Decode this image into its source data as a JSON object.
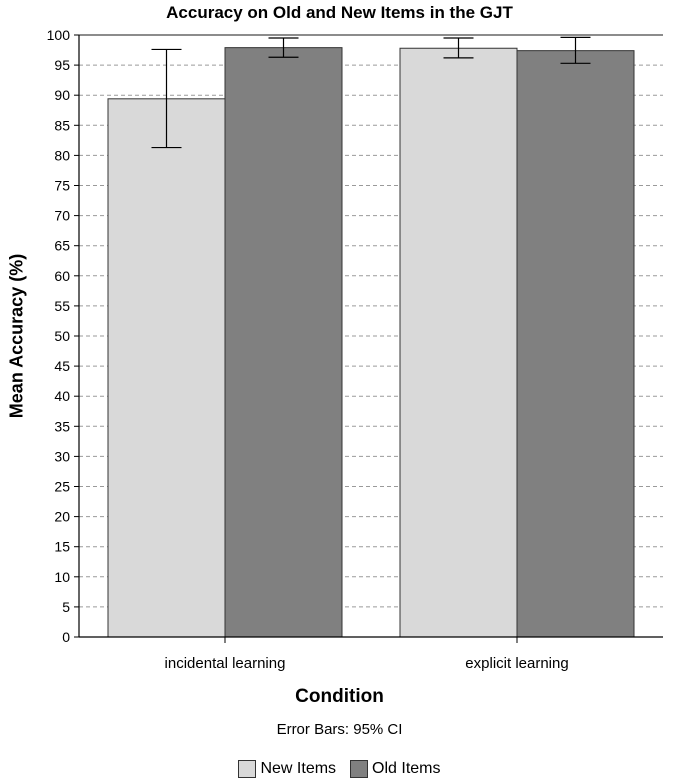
{
  "chart_data": {
    "type": "bar",
    "title": "Accuracy on Old and New Items in the GJT",
    "xlabel": "Condition",
    "ylabel": "Mean Accuracy (%)",
    "ylim": [
      0,
      100
    ],
    "yticks": [
      0,
      5,
      10,
      15,
      20,
      25,
      30,
      35,
      40,
      45,
      50,
      55,
      60,
      65,
      70,
      75,
      80,
      85,
      90,
      95,
      100
    ],
    "grid": true,
    "categories": [
      "incidental learning",
      "explicit learning"
    ],
    "series": [
      {
        "name": "New Items",
        "color": "#d9d9d9",
        "values": [
          89.4,
          97.8
        ],
        "ci_low": [
          81.3,
          96.2
        ],
        "ci_high": [
          97.6,
          99.5
        ]
      },
      {
        "name": "Old Items",
        "color": "#808080",
        "values": [
          97.9,
          97.4
        ],
        "ci_low": [
          96.3,
          95.3
        ],
        "ci_high": [
          99.5,
          99.6
        ]
      }
    ],
    "error_bar_note": "Error Bars: 95% CI",
    "legend_position": "bottom-center"
  }
}
